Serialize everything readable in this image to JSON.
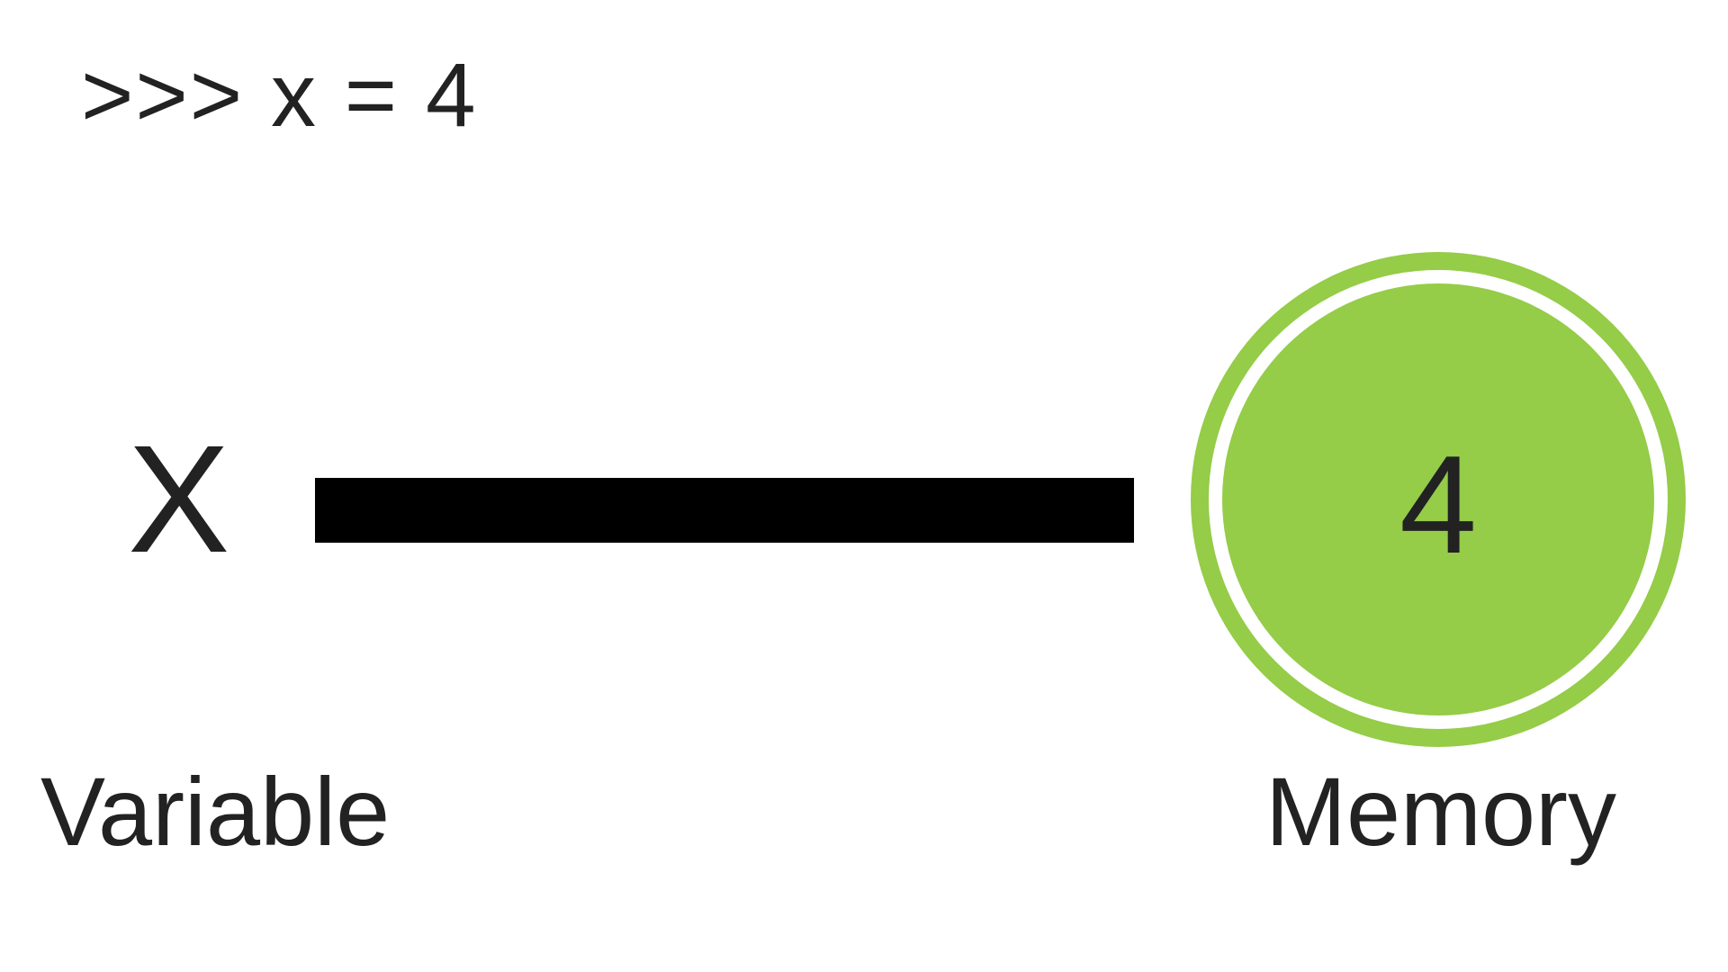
{
  "code": {
    "prompt_line": ">>> x = 4"
  },
  "variable": {
    "name": "X",
    "caption": "Variable"
  },
  "memory": {
    "value": "4",
    "caption": "Memory"
  },
  "colors": {
    "memory_fill": "#95cc48",
    "connector": "#000000",
    "text": "#222222",
    "background": "#ffffff"
  }
}
